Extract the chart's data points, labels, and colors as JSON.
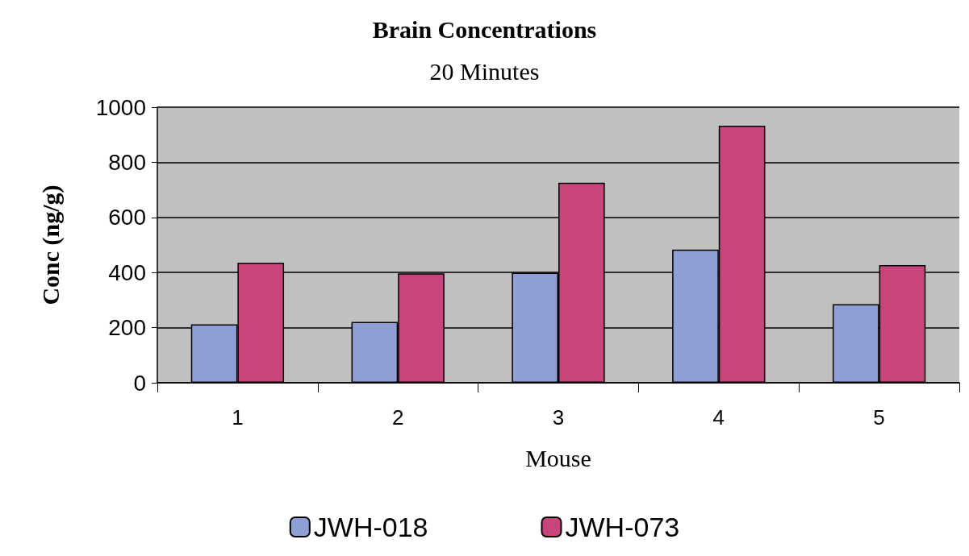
{
  "chart_data": {
    "type": "bar",
    "title": "Brain Concentrations",
    "subtitle": "20 Minutes",
    "xlabel": "Mouse",
    "ylabel": "Conc (ng/g)",
    "categories": [
      "1",
      "2",
      "3",
      "4",
      "5"
    ],
    "series": [
      {
        "name": "JWH-018",
        "color": "#8e9fd5",
        "values": [
          212,
          221,
          399,
          483,
          285
        ]
      },
      {
        "name": "JWH-073",
        "color": "#c7457a",
        "values": [
          436,
          397,
          726,
          933,
          427
        ]
      }
    ],
    "ylim": [
      0,
      1000
    ],
    "yticks": [
      0,
      200,
      400,
      600,
      800,
      1000
    ],
    "grid": "y",
    "legend": "bottom"
  }
}
